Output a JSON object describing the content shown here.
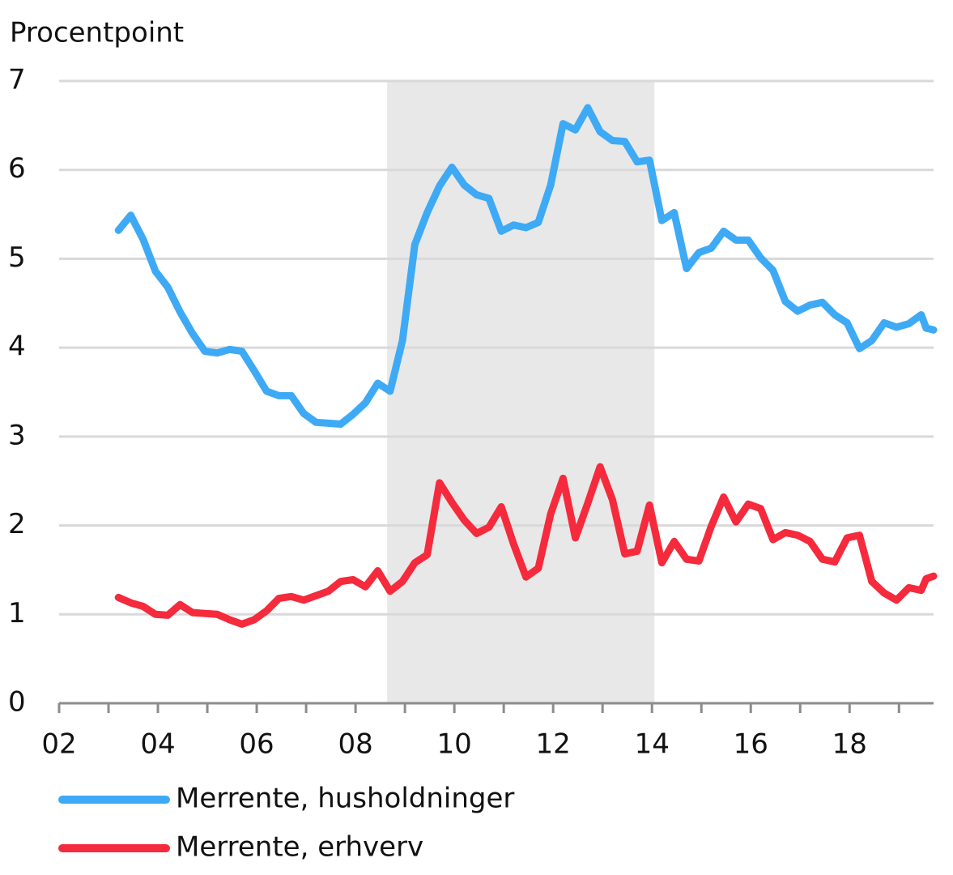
{
  "chart_data": {
    "type": "line",
    "y_label": "Procentpoint",
    "x": [
      2003.2,
      2003.45,
      2003.7,
      2003.95,
      2004.2,
      2004.45,
      2004.7,
      2004.95,
      2005.2,
      2005.45,
      2005.7,
      2005.95,
      2006.2,
      2006.45,
      2006.7,
      2006.95,
      2007.2,
      2007.45,
      2007.7,
      2007.95,
      2008.2,
      2008.45,
      2008.7,
      2008.95,
      2009.2,
      2009.45,
      2009.7,
      2009.95,
      2010.2,
      2010.45,
      2010.7,
      2010.95,
      2011.2,
      2011.45,
      2011.7,
      2011.95,
      2012.2,
      2012.45,
      2012.7,
      2012.95,
      2013.2,
      2013.45,
      2013.7,
      2013.95,
      2014.2,
      2014.45,
      2014.7,
      2014.95,
      2015.2,
      2015.45,
      2015.7,
      2015.95,
      2016.2,
      2016.45,
      2016.7,
      2016.95,
      2017.2,
      2017.45,
      2017.7,
      2017.95,
      2018.2,
      2018.45,
      2018.7,
      2018.95,
      2019.2,
      2019.45,
      2019.55,
      2019.7
    ],
    "series": [
      {
        "name": "Merrente, husholdninger",
        "color": "#3eaaf5",
        "values": [
          5.32,
          5.49,
          5.22,
          4.86,
          4.68,
          4.4,
          4.16,
          3.96,
          3.94,
          3.98,
          3.96,
          3.74,
          3.51,
          3.46,
          3.46,
          3.26,
          3.16,
          3.15,
          3.14,
          3.25,
          3.38,
          3.6,
          3.51,
          4.08,
          5.16,
          5.52,
          5.82,
          6.03,
          5.83,
          5.72,
          5.68,
          5.31,
          5.38,
          5.35,
          5.41,
          5.83,
          6.52,
          6.45,
          6.7,
          6.43,
          6.33,
          6.32,
          6.09,
          6.11,
          5.43,
          5.52,
          4.89,
          5.07,
          5.12,
          5.31,
          5.21,
          5.21,
          5.01,
          4.87,
          4.52,
          4.41,
          4.48,
          4.51,
          4.37,
          4.28,
          3.99,
          4.08,
          4.28,
          4.23,
          4.27,
          4.37,
          4.22,
          4.2
        ]
      },
      {
        "name": "Merrente, erhverv",
        "color": "#f52a3c",
        "values": [
          1.19,
          1.13,
          1.09,
          1.0,
          0.99,
          1.11,
          1.02,
          1.01,
          1.0,
          0.94,
          0.89,
          0.94,
          1.04,
          1.18,
          1.2,
          1.16,
          1.21,
          1.26,
          1.37,
          1.39,
          1.31,
          1.49,
          1.26,
          1.37,
          1.58,
          1.67,
          2.48,
          2.26,
          2.06,
          1.91,
          1.98,
          2.21,
          1.79,
          1.42,
          1.52,
          2.13,
          2.53,
          1.86,
          2.25,
          2.66,
          2.29,
          1.68,
          1.71,
          2.23,
          1.58,
          1.82,
          1.62,
          1.6,
          1.99,
          2.32,
          2.04,
          2.24,
          2.19,
          1.84,
          1.92,
          1.89,
          1.82,
          1.62,
          1.59,
          1.86,
          1.89,
          1.37,
          1.24,
          1.16,
          1.3,
          1.27,
          1.4,
          1.43
        ]
      }
    ],
    "xlim": [
      2002,
      2019.7
    ],
    "xticks": [
      {
        "value": 2002,
        "label": "02"
      },
      {
        "value": 2004,
        "label": "04"
      },
      {
        "value": 2006,
        "label": "06"
      },
      {
        "value": 2008,
        "label": "08"
      },
      {
        "value": 2010,
        "label": "10"
      },
      {
        "value": 2012,
        "label": "12"
      },
      {
        "value": 2014,
        "label": "14"
      },
      {
        "value": 2016,
        "label": "16"
      },
      {
        "value": 2018,
        "label": "18"
      }
    ],
    "minor_xticks": [
      2003,
      2005,
      2007,
      2009,
      2011,
      2013,
      2015,
      2017,
      2019
    ],
    "ylim": [
      0,
      7
    ],
    "yticks": [
      0,
      1,
      2,
      3,
      4,
      5,
      6,
      7
    ],
    "shaded_span": [
      2008.64,
      2014.05
    ],
    "grid": true
  }
}
